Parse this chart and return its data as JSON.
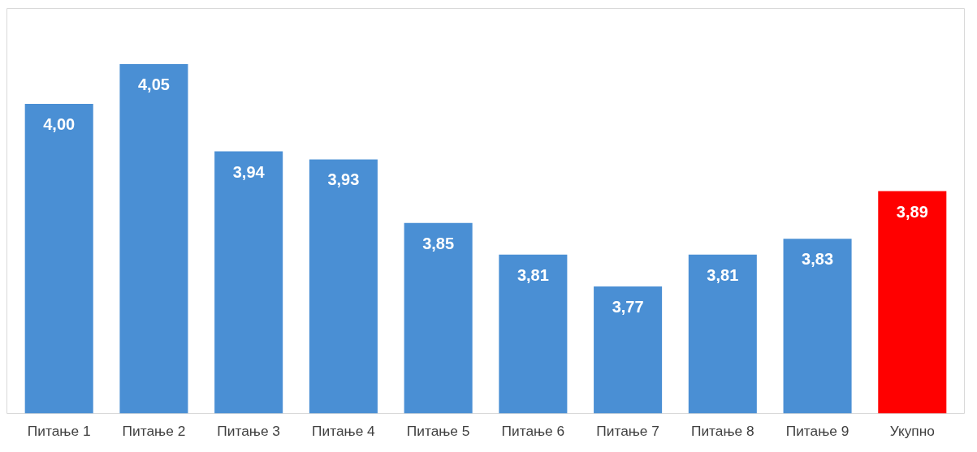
{
  "chart_data": {
    "type": "bar",
    "categories": [
      "Питање 1",
      "Питање 2",
      "Питање 3",
      "Питање 4",
      "Питање 5",
      "Питање 6",
      "Питање 7",
      "Питање 8",
      "Питање 9",
      "Укупно"
    ],
    "values": [
      4.0,
      4.05,
      3.94,
      3.93,
      3.85,
      3.81,
      3.77,
      3.81,
      3.83,
      3.89
    ],
    "colors": [
      "#4a8fd4",
      "#4a8fd4",
      "#4a8fd4",
      "#4a8fd4",
      "#4a8fd4",
      "#4a8fd4",
      "#4a8fd4",
      "#4a8fd4",
      "#4a8fd4",
      "#ff0000"
    ],
    "value_labels": [
      "4,00",
      "4,05",
      "3,94",
      "3,93",
      "3,85",
      "3,81",
      "3,77",
      "3,81",
      "3,83",
      "3,89"
    ],
    "ylim": [
      3.61,
      4.12
    ],
    "tick_labels": "x"
  }
}
